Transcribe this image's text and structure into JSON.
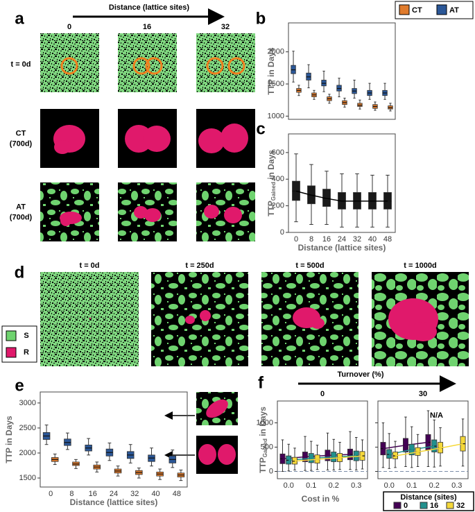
{
  "panel_a": {
    "letter": "a",
    "header": "Distance (lattice sites)",
    "columns": [
      "0",
      "16",
      "32"
    ],
    "rows": [
      [
        "t = 0d"
      ],
      [
        "CT",
        "(700d)"
      ],
      [
        "AT",
        "(700d)"
      ]
    ]
  },
  "panel_d": {
    "letter": "d",
    "columns": [
      "t = 0d",
      "t = 250d",
      "t = 500d",
      "t = 1000d"
    ],
    "legend": [
      {
        "label": "S",
        "color": "#6fd36f"
      },
      {
        "label": "R",
        "color": "#e0196b"
      }
    ]
  },
  "chart_data": [
    {
      "type": "box",
      "letter": "b",
      "y_label": "TTP in Days",
      "ylim": [
        950,
        2450
      ],
      "yticks": [
        1000,
        1500,
        2000
      ],
      "legend": "top-right",
      "series": [
        {
          "name": "CT",
          "color": "#e07b2c",
          "median": [
            1400,
            1330,
            1270,
            1210,
            1170,
            1150,
            1130
          ],
          "q1": [
            1370,
            1300,
            1240,
            1180,
            1150,
            1120,
            1110
          ],
          "q3": [
            1430,
            1360,
            1300,
            1240,
            1200,
            1180,
            1160
          ],
          "low": [
            1320,
            1260,
            1200,
            1140,
            1110,
            1090,
            1080
          ],
          "high": [
            1480,
            1400,
            1340,
            1280,
            1250,
            1220,
            1200
          ]
        },
        {
          "name": "AT",
          "color": "#2b5797",
          "median": [
            1720,
            1610,
            1510,
            1430,
            1390,
            1360,
            1360
          ],
          "q1": [
            1660,
            1560,
            1470,
            1390,
            1350,
            1320,
            1320
          ],
          "q3": [
            1790,
            1670,
            1560,
            1480,
            1430,
            1400,
            1400
          ],
          "low": [
            1530,
            1440,
            1380,
            1300,
            1280,
            1260,
            1260
          ],
          "high": [
            2010,
            1800,
            1700,
            1590,
            1560,
            1510,
            1510
          ]
        }
      ]
    },
    {
      "type": "box",
      "letter": "c",
      "y_label": "TTP",
      "y_label_sub": "Gained",
      "y_label_rest": " in Days",
      "x_label": "Distance (lattice sites)",
      "categories": [
        "0",
        "8",
        "16",
        "24",
        "32",
        "40",
        "48"
      ],
      "ylim": [
        0,
        740
      ],
      "yticks": [
        0,
        200,
        400,
        600
      ],
      "connect": true,
      "series": [
        {
          "color": "#1a1a1a",
          "median": [
            310,
            280,
            255,
            235,
            235,
            235,
            235
          ],
          "q1": [
            240,
            215,
            195,
            175,
            175,
            175,
            175
          ],
          "q3": [
            385,
            350,
            325,
            300,
            300,
            300,
            300
          ],
          "low": [
            80,
            60,
            60,
            40,
            40,
            40,
            40
          ],
          "high": [
            590,
            510,
            460,
            440,
            440,
            430,
            430
          ]
        }
      ]
    },
    {
      "type": "box",
      "letter": "e",
      "y_label": "TTP in Days",
      "x_label": "Distance (lattice sites)",
      "categories": [
        "0",
        "8",
        "16",
        "24",
        "32",
        "40",
        "48"
      ],
      "ylim": [
        1320,
        3220
      ],
      "yticks": [
        1500,
        2000,
        2500,
        3000
      ],
      "series": [
        {
          "color": "#e07b2c",
          "median": [
            1870,
            1780,
            1720,
            1640,
            1610,
            1580,
            1560
          ],
          "q1": [
            1830,
            1750,
            1680,
            1600,
            1570,
            1540,
            1520
          ],
          "q3": [
            1910,
            1820,
            1760,
            1680,
            1650,
            1620,
            1600
          ],
          "low": [
            1770,
            1690,
            1620,
            1540,
            1500,
            1470,
            1450
          ],
          "high": [
            1980,
            1870,
            1820,
            1740,
            1700,
            1680,
            1660
          ]
        },
        {
          "color": "#2b5797",
          "median": [
            2340,
            2210,
            2100,
            2010,
            1960,
            1900,
            1870
          ],
          "q1": [
            2270,
            2150,
            2040,
            1940,
            1890,
            1830,
            1800
          ],
          "q3": [
            2410,
            2280,
            2160,
            2080,
            2030,
            1960,
            1940
          ],
          "low": [
            2170,
            2070,
            1960,
            1850,
            1800,
            1740,
            1710
          ],
          "high": [
            2560,
            2400,
            2290,
            2200,
            2170,
            2100,
            2060
          ]
        }
      ]
    },
    {
      "type": "box-panels",
      "letter": "f",
      "header": "Turnover (%)",
      "x_label": "Cost in %",
      "y_label": "TTP",
      "y_label_sub": "Gained",
      "y_label_rest": " in Days",
      "ylim": [
        -150,
        1450
      ],
      "yticks": [
        0,
        500,
        1000
      ],
      "ref_line": 0,
      "legend_title": "Distance (sites)",
      "series_names": [
        "0",
        "16",
        "32"
      ],
      "colors": [
        "#440154",
        "#21908d",
        "#f5d83a"
      ],
      "panels": [
        {
          "title": "0",
          "categories": [
            "0.0",
            "0.1",
            "0.2",
            "0.3"
          ],
          "series": [
            {
              "median": [
                260,
                300,
                330,
                350
              ],
              "q1": [
                160,
                200,
                220,
                240
              ],
              "q3": [
                360,
                400,
                440,
                460
              ],
              "low": [
                0,
                20,
                30,
                40
              ],
              "high": [
                650,
                720,
                790,
                820
              ]
            },
            {
              "median": [
                230,
                270,
                300,
                320
              ],
              "q1": [
                150,
                180,
                200,
                220
              ],
              "q3": [
                320,
                370,
                400,
                420
              ],
              "low": [
                10,
                20,
                30,
                30
              ],
              "high": [
                560,
                620,
                660,
                700
              ]
            },
            {
              "median": [
                210,
                250,
                280,
                320
              ],
              "q1": [
                150,
                170,
                200,
                230
              ],
              "q3": [
                290,
                340,
                370,
                410
              ],
              "low": [
                30,
                40,
                40,
                50
              ],
              "high": [
                480,
                540,
                600,
                650
              ]
            }
          ]
        },
        {
          "title": "30",
          "categories": [
            "0.0",
            "0.1",
            "0.2",
            "0.3"
          ],
          "annotation": "N/A",
          "series": [
            {
              "median": [
                470,
                540,
                600,
                null
              ],
              "q1": [
                340,
                400,
                440,
                null
              ],
              "q3": [
                600,
                680,
                760,
                null
              ],
              "low": [
                80,
                100,
                100,
                null
              ],
              "high": [
                1000,
                1120,
                1250,
                null
              ]
            },
            {
              "median": [
                350,
                450,
                520,
                null
              ],
              "q1": [
                270,
                340,
                400,
                null
              ],
              "q3": [
                450,
                560,
                650,
                null
              ],
              "low": [
                60,
                80,
                90,
                null
              ],
              "high": [
                780,
                920,
                1060,
                null
              ]
            },
            {
              "median": [
                320,
                400,
                480,
                570
              ],
              "q1": [
                260,
                330,
                380,
                420
              ],
              "q3": [
                400,
                490,
                600,
                720
              ],
              "low": [
                80,
                100,
                110,
                110
              ],
              "high": [
                620,
                760,
                900,
                1080
              ]
            }
          ]
        }
      ]
    }
  ]
}
